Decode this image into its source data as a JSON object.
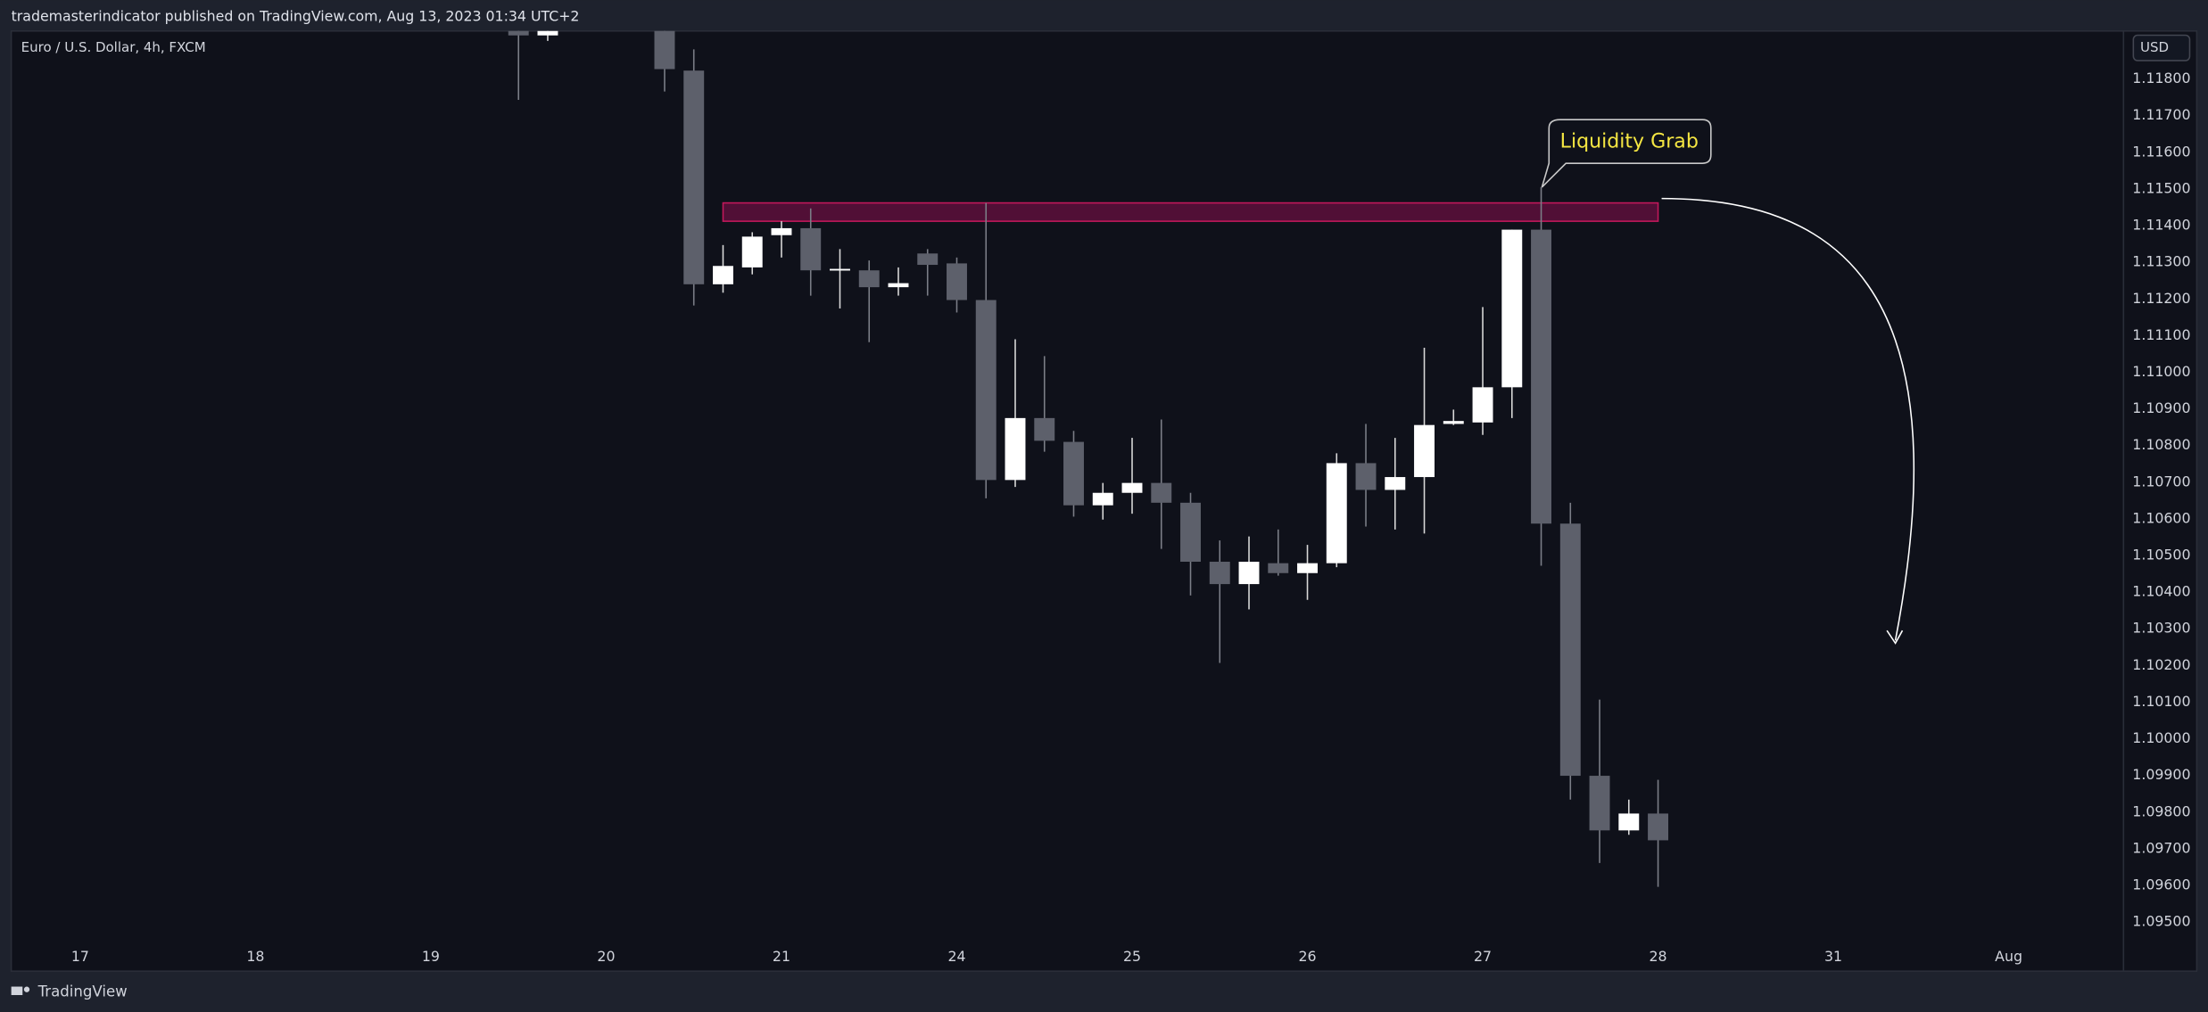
{
  "header": "trademasterindicator published on TradingView.com, Aug 13, 2023 01:34 UTC+2",
  "footer": "TradingView",
  "currency_button": "USD",
  "chart_data": {
    "type": "candlestick",
    "title": "Euro / U.S. Dollar, 4h, FXCM",
    "up_color": "#ffffff",
    "down_color": "#5d606b",
    "x": [
      15,
      16,
      20,
      21,
      22,
      23,
      24,
      25,
      26,
      27,
      28,
      29,
      30,
      31,
      32,
      33,
      34,
      35,
      36,
      37,
      38,
      39,
      40,
      41,
      42,
      43,
      44,
      45,
      46,
      47,
      48,
      49,
      50,
      51,
      52,
      53,
      54
    ],
    "open": [
      1.11946,
      1.11919,
      1.1198,
      1.11823,
      1.1124,
      1.11286,
      1.11374,
      1.11393,
      1.11282,
      1.11278,
      1.11232,
      1.11324,
      1.11297,
      1.11197,
      1.10706,
      1.10875,
      1.1081,
      1.10637,
      1.10671,
      1.10698,
      1.10644,
      1.10483,
      1.10422,
      1.10479,
      1.10452,
      1.10479,
      1.10752,
      1.10679,
      1.10714,
      1.10859,
      1.10863,
      1.10959,
      1.11389,
      1.10587,
      1.09899,
      1.0975,
      1.09796
    ],
    "high": [
      1.12,
      1.1198,
      1.12,
      1.11881,
      1.11347,
      1.11382,
      1.11412,
      1.11447,
      1.11336,
      1.11305,
      1.11286,
      1.11336,
      1.11313,
      1.11462,
      1.1109,
      1.11044,
      1.1084,
      1.10698,
      1.10821,
      1.10871,
      1.10671,
      1.10541,
      1.10552,
      1.10571,
      1.10529,
      1.10779,
      1.10859,
      1.10821,
      1.11067,
      1.10898,
      1.11178,
      1.11389,
      1.11505,
      1.10644,
      1.10107,
      1.09834,
      1.09888
    ],
    "low": [
      1.11743,
      1.11904,
      1.11766,
      1.11182,
      1.11217,
      1.11267,
      1.11313,
      1.11209,
      1.11174,
      1.11082,
      1.11209,
      1.11209,
      1.11163,
      1.10656,
      1.10687,
      1.10783,
      1.10606,
      1.10598,
      1.10614,
      1.10518,
      1.10391,
      1.10207,
      1.10353,
      1.10445,
      1.10379,
      1.10468,
      1.10579,
      1.10571,
      1.1056,
      1.10856,
      1.10829,
      1.10875,
      1.10472,
      1.09834,
      1.09661,
      1.09738,
      1.09596
    ],
    "close": [
      1.11919,
      1.11946,
      1.11827,
      1.1124,
      1.1129,
      1.1137,
      1.11393,
      1.11278,
      1.11282,
      1.11232,
      1.11243,
      1.11293,
      1.11197,
      1.10706,
      1.10875,
      1.10813,
      1.10637,
      1.10671,
      1.10698,
      1.10644,
      1.10483,
      1.10422,
      1.10483,
      1.10452,
      1.10479,
      1.10752,
      1.10679,
      1.10714,
      1.10856,
      1.10867,
      1.10959,
      1.11389,
      1.10587,
      1.09899,
      1.0975,
      1.09796,
      1.09723
    ],
    "xlim": [
      -2.36,
      69.93
    ],
    "xticks": [
      {
        "value": 0,
        "label": "17"
      },
      {
        "value": 6,
        "label": "18"
      },
      {
        "value": 12,
        "label": "19"
      },
      {
        "value": 18,
        "label": "20"
      },
      {
        "value": 24,
        "label": "21"
      },
      {
        "value": 30,
        "label": "24"
      },
      {
        "value": 36,
        "label": "25"
      },
      {
        "value": 42,
        "label": "26"
      },
      {
        "value": 48,
        "label": "27"
      },
      {
        "value": 54,
        "label": "28"
      },
      {
        "value": 60,
        "label": "31"
      },
      {
        "value": 66,
        "label": "Aug"
      }
    ],
    "ylim": [
      1.09366,
      1.11931
    ],
    "yticks": [
      {
        "value": 1.095,
        "label": "1.09500"
      },
      {
        "value": 1.096,
        "label": "1.09600"
      },
      {
        "value": 1.097,
        "label": "1.09700"
      },
      {
        "value": 1.098,
        "label": "1.09800"
      },
      {
        "value": 1.099,
        "label": "1.09900"
      },
      {
        "value": 1.1,
        "label": "1.10000"
      },
      {
        "value": 1.101,
        "label": "1.10100"
      },
      {
        "value": 1.102,
        "label": "1.10200"
      },
      {
        "value": 1.103,
        "label": "1.10300"
      },
      {
        "value": 1.104,
        "label": "1.10400"
      },
      {
        "value": 1.105,
        "label": "1.10500"
      },
      {
        "value": 1.106,
        "label": "1.10600"
      },
      {
        "value": 1.107,
        "label": "1.10700"
      },
      {
        "value": 1.108,
        "label": "1.10800"
      },
      {
        "value": 1.109,
        "label": "1.10900"
      },
      {
        "value": 1.11,
        "label": "1.11000"
      },
      {
        "value": 1.111,
        "label": "1.11100"
      },
      {
        "value": 1.112,
        "label": "1.11200"
      },
      {
        "value": 1.113,
        "label": "1.11300"
      },
      {
        "value": 1.114,
        "label": "1.11400"
      },
      {
        "value": 1.115,
        "label": "1.11500"
      },
      {
        "value": 1.116,
        "label": "1.11600"
      },
      {
        "value": 1.117,
        "label": "1.11700"
      },
      {
        "value": 1.118,
        "label": "1.11800"
      }
    ],
    "zone": {
      "x": [
        22,
        54
      ],
      "y": [
        1.11412,
        1.11462
      ],
      "color": "#880e4f"
    },
    "annotation": "Liquidity Grab"
  }
}
